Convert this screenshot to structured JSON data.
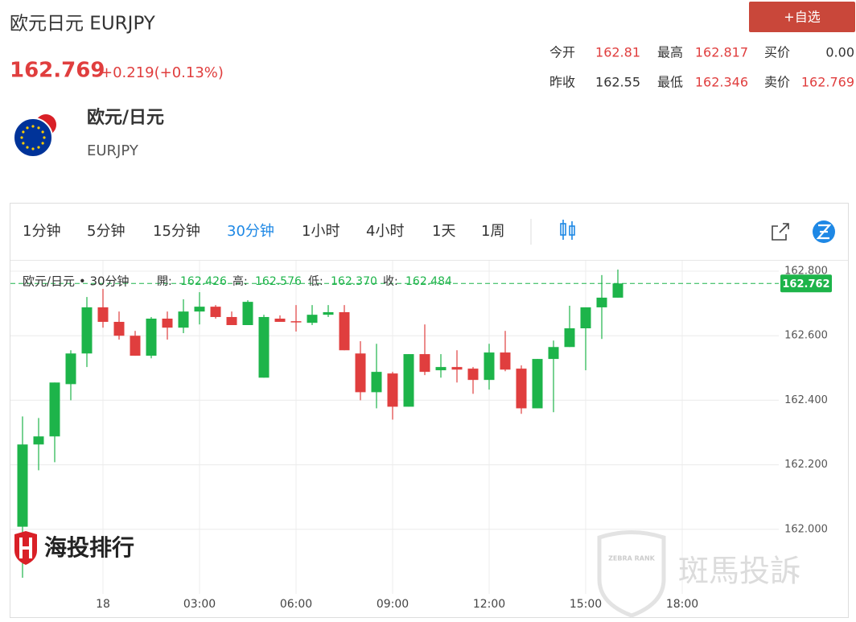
{
  "header": {
    "title": "欧元日元 EURJPY",
    "price": "162.769",
    "change": "+0.219(+0.13%)",
    "button": "+自选"
  },
  "stats": [
    [
      {
        "label": "今开",
        "value": "162.81",
        "color": "#e03e3e"
      },
      {
        "label": "最高",
        "value": "162.817",
        "color": "#e03e3e"
      },
      {
        "label": "买价",
        "value": "0.00",
        "color": "#333333"
      }
    ],
    [
      {
        "label": "昨收",
        "value": "162.55",
        "color": "#333333"
      },
      {
        "label": "最低",
        "value": "162.346",
        "color": "#e03e3e"
      },
      {
        "label": "卖价",
        "value": "162.769",
        "color": "#e03e3e"
      }
    ]
  ],
  "instrument": {
    "name": "欧元/日元",
    "code": "EURJPY"
  },
  "tabs": [
    "1分钟",
    "5分钟",
    "15分钟",
    "30分钟",
    "1小时",
    "4小时",
    "1天",
    "1周"
  ],
  "active_tab": 3,
  "watermarks": [
    "海投排行",
    "ZEBRA RANK",
    "斑馬投訴"
  ],
  "chart_data": {
    "type": "candlestick",
    "legend_title": "欧元/日元 • 30分钟",
    "ohlc_labels": [
      {
        "label": "開:",
        "value": "162.426"
      },
      {
        "label": "高:",
        "value": "162.576"
      },
      {
        "label": "低:",
        "value": "162.370"
      },
      {
        "label": "收:",
        "value": "162.484"
      }
    ],
    "open": [
      162.008,
      162.263,
      162.288,
      162.45,
      162.545,
      162.688,
      162.643,
      162.6,
      162.538,
      162.653,
      162.625,
      162.675,
      162.69,
      162.658,
      162.633,
      162.47,
      162.653,
      162.645,
      162.64,
      162.665,
      162.673,
      162.545,
      162.425,
      162.483,
      162.38,
      162.543,
      162.493,
      162.503,
      162.498,
      162.463,
      162.548,
      162.498,
      162.375,
      162.528,
      162.565,
      162.623,
      162.688,
      162.718
    ],
    "high": [
      162.35,
      162.345,
      162.455,
      162.555,
      162.72,
      162.745,
      162.675,
      162.615,
      162.658,
      162.675,
      162.713,
      162.735,
      162.695,
      162.675,
      162.71,
      162.665,
      162.663,
      162.695,
      162.695,
      162.695,
      162.695,
      162.583,
      162.575,
      162.488,
      162.543,
      162.635,
      162.543,
      162.555,
      162.503,
      162.575,
      162.615,
      162.508,
      162.528,
      162.585,
      162.693,
      162.688,
      162.788,
      162.805
    ],
    "low": [
      161.85,
      162.183,
      162.208,
      162.4,
      162.503,
      162.625,
      162.588,
      162.538,
      162.53,
      162.588,
      162.608,
      162.635,
      162.653,
      162.633,
      162.633,
      162.47,
      162.643,
      162.613,
      162.633,
      162.658,
      162.555,
      162.4,
      162.375,
      162.34,
      162.38,
      162.478,
      162.47,
      162.455,
      162.42,
      162.433,
      162.49,
      162.358,
      162.375,
      162.363,
      162.565,
      162.493,
      162.59,
      162.718
    ],
    "close": [
      162.263,
      162.288,
      162.455,
      162.545,
      162.688,
      162.643,
      162.6,
      162.538,
      162.653,
      162.625,
      162.675,
      162.69,
      162.658,
      162.633,
      162.705,
      162.658,
      162.643,
      162.643,
      162.665,
      162.673,
      162.555,
      162.425,
      162.488,
      162.38,
      162.543,
      162.488,
      162.503,
      162.495,
      162.463,
      162.548,
      162.495,
      162.375,
      162.528,
      162.565,
      162.623,
      162.688,
      162.718,
      162.762
    ],
    "up_color": "#1db44a",
    "down_color": "#e03e3e",
    "last_price": 162.762,
    "ylim": [
      161.8,
      162.8325
    ],
    "yticks": [
      {
        "value": 162,
        "label": "162.000"
      },
      {
        "value": 162.2,
        "label": "162.200"
      },
      {
        "value": 162.4,
        "label": "162.400"
      },
      {
        "value": 162.6,
        "label": "162.600"
      },
      {
        "value": 162.8,
        "label": "162.800"
      }
    ],
    "xlim": [
      -0.75,
      47
    ],
    "xticks": [
      {
        "value": 5,
        "label": "18"
      },
      {
        "value": 11,
        "label": "03:00"
      },
      {
        "value": 17,
        "label": "06:00"
      },
      {
        "value": 23,
        "label": "09:00"
      },
      {
        "value": 29,
        "label": "12:00"
      },
      {
        "value": 35,
        "label": "15:00"
      },
      {
        "value": 41,
        "label": "18:00"
      }
    ],
    "grid": true
  }
}
